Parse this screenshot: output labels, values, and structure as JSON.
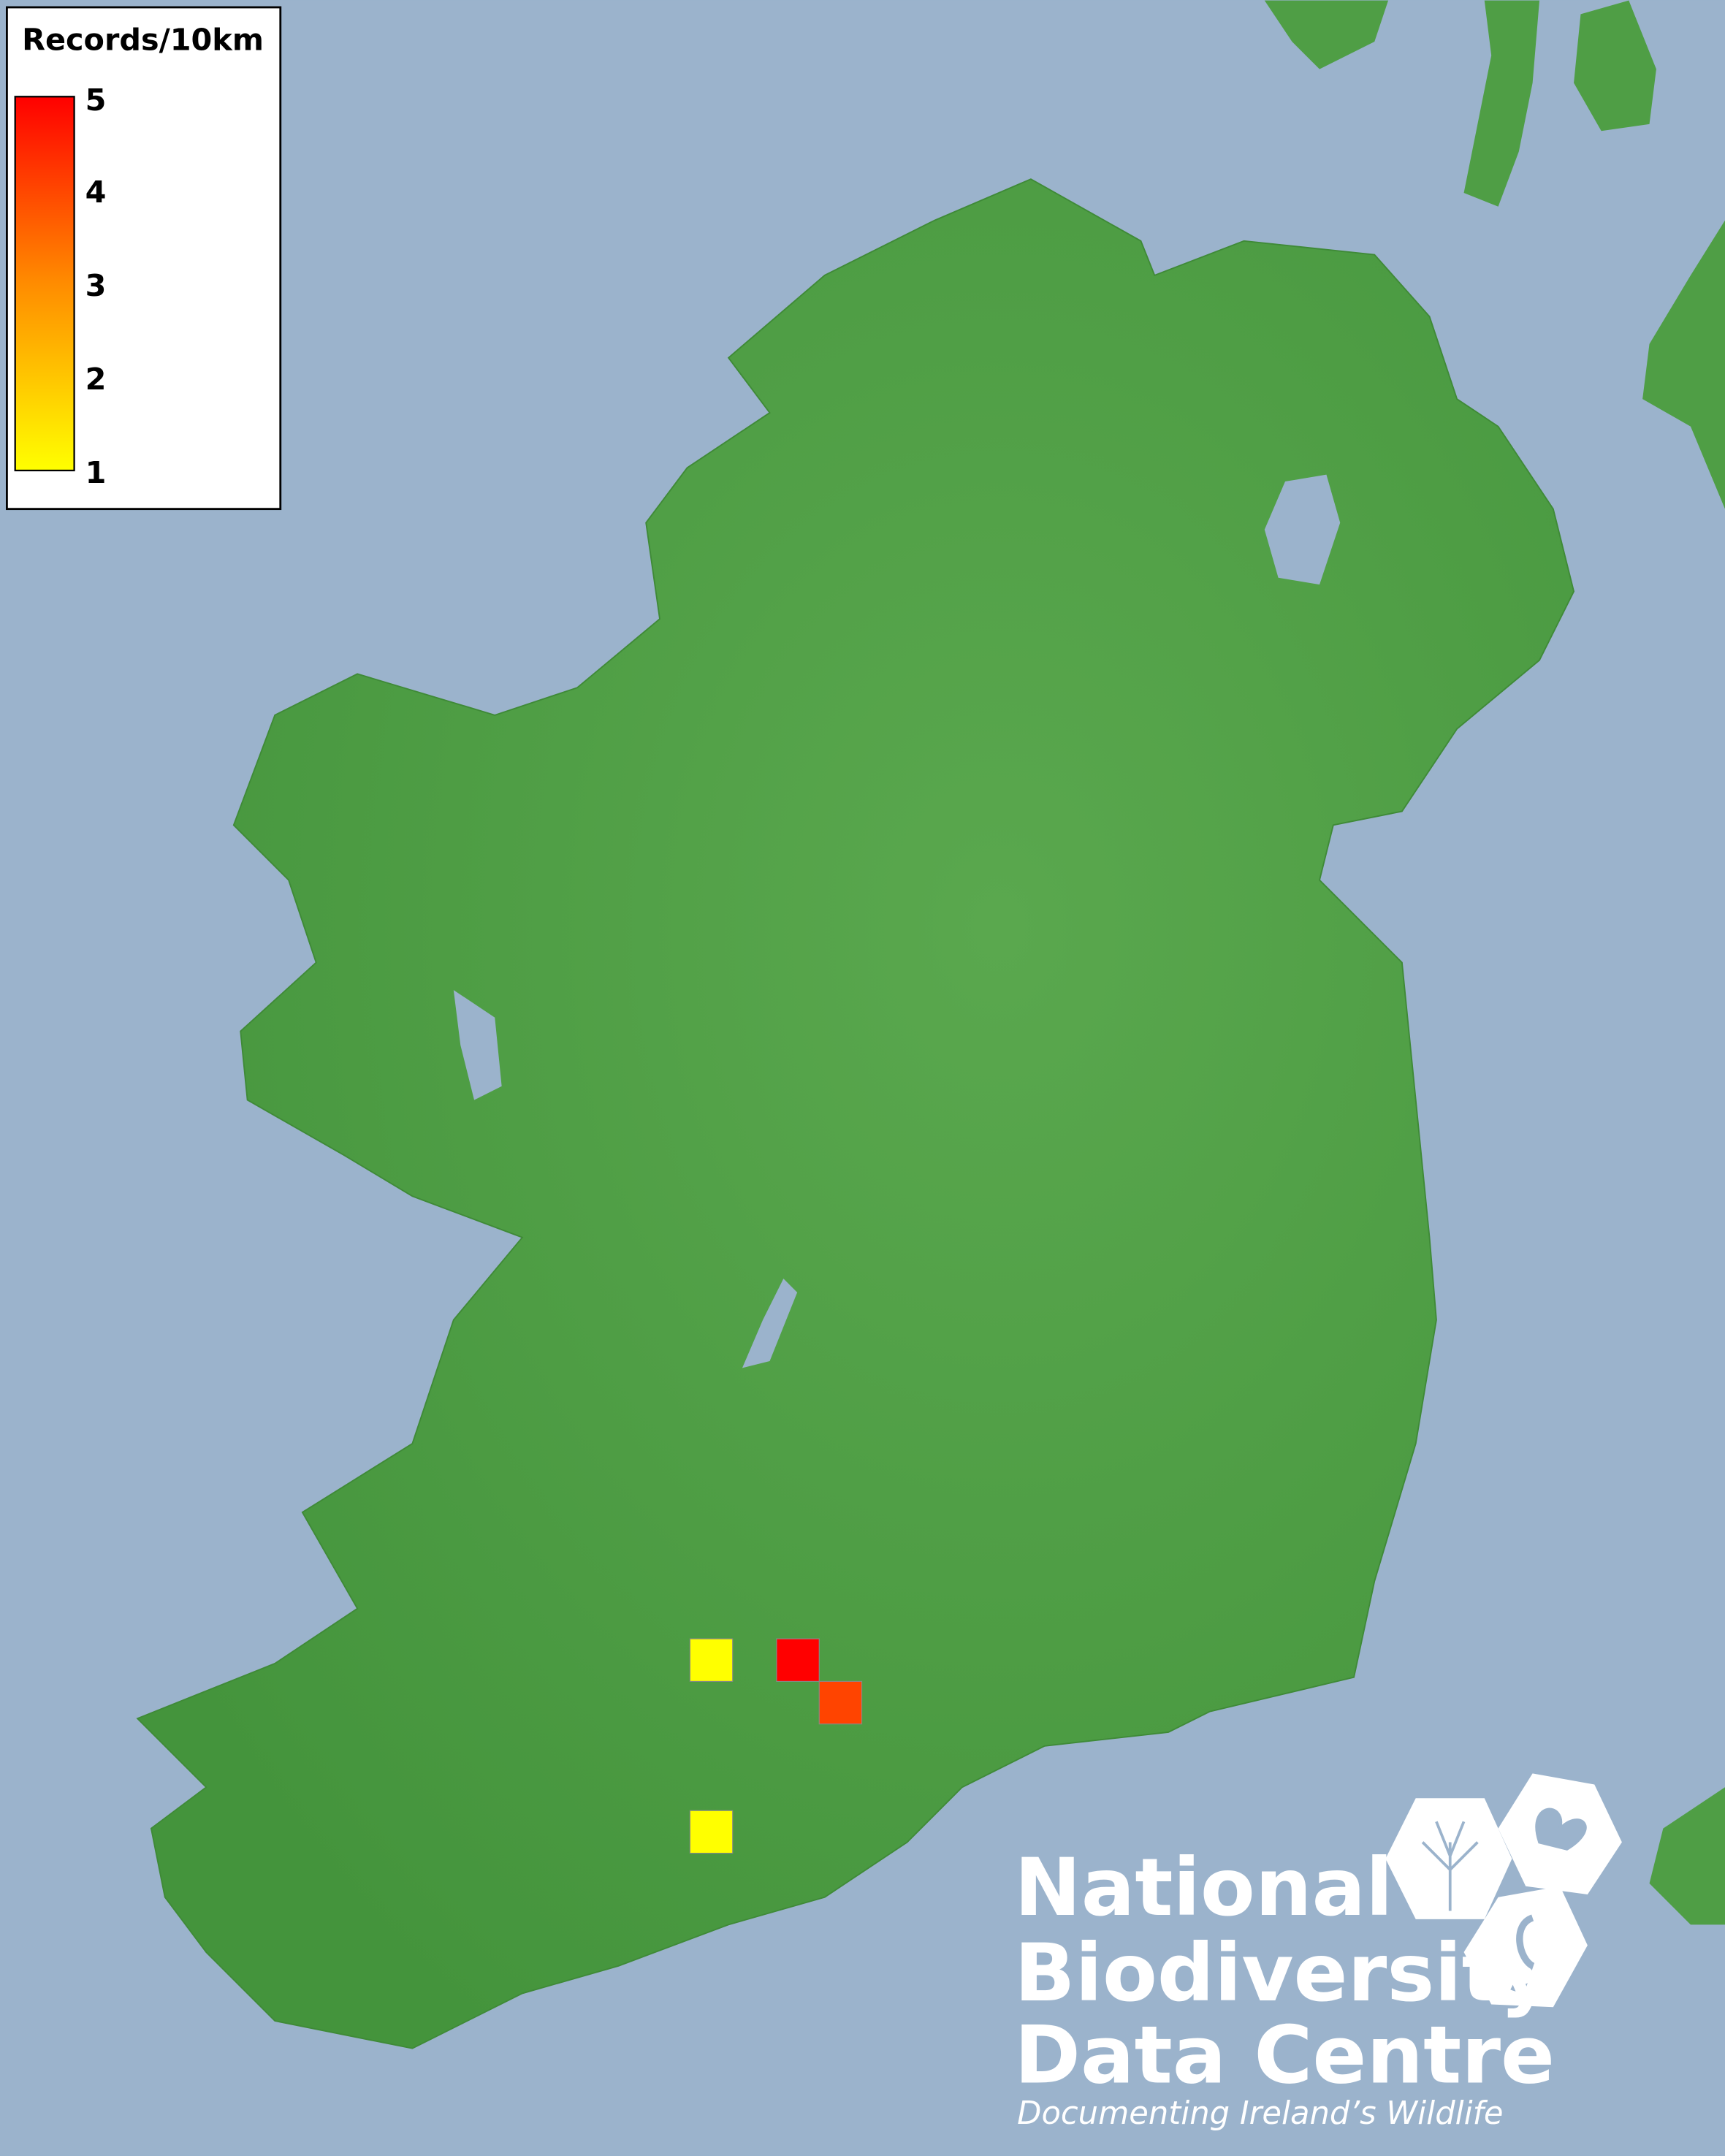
{
  "colors": {
    "sea": "#9bb3cc",
    "land": "#4f9e45",
    "low": "#ffff00",
    "high": "#ff0000",
    "border": "#000000"
  },
  "legend": {
    "title": "Records/10km",
    "ticks": [
      "5",
      "4",
      "3",
      "2",
      "1"
    ],
    "range": [
      1,
      5
    ]
  },
  "grid_squares": [
    {
      "value": 1,
      "color": "#ffff00"
    },
    {
      "value": 5,
      "color": "#ff0000"
    },
    {
      "value": 4,
      "color": "#ff4400"
    },
    {
      "value": 1,
      "color": "#ffff00"
    }
  ],
  "logo": {
    "line1": "National",
    "line2": "Biodiversity",
    "line3": "Data Centre",
    "tagline": "Documenting Ireland’s Wildlife"
  }
}
